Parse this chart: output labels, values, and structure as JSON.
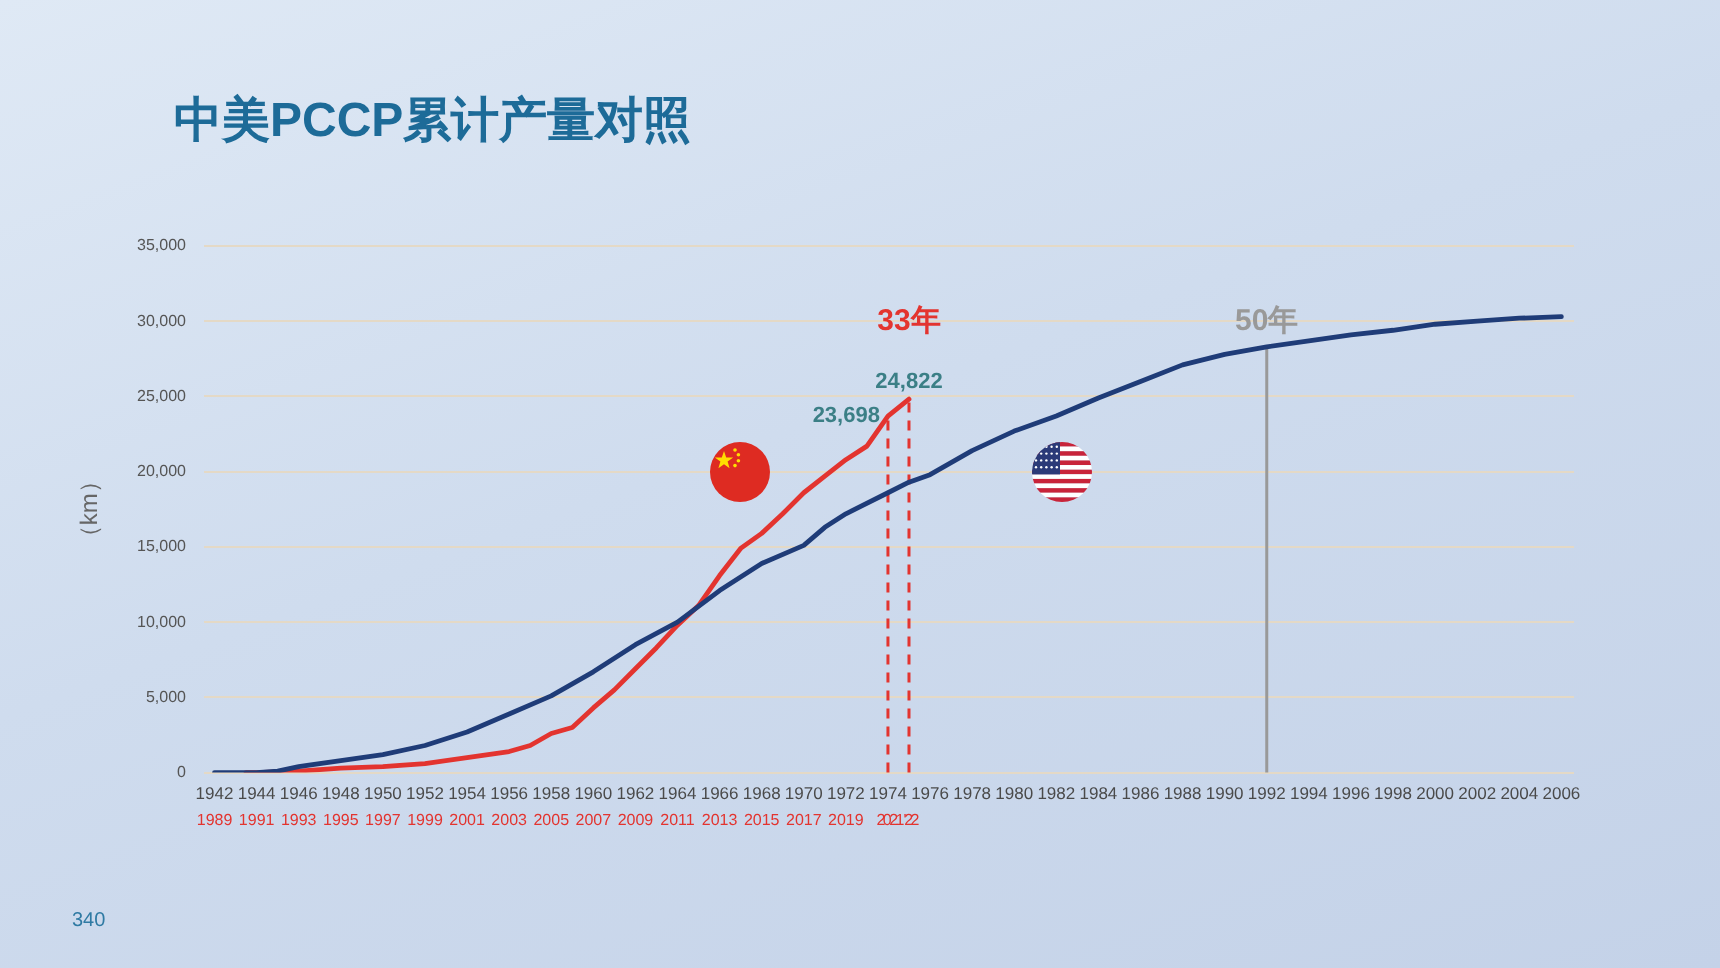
{
  "chart_data": {
    "type": "line",
    "title": "中美PCCP累计产量对照",
    "ylabel": "（km）",
    "xlim": [
      1941.5,
      2006.6
    ],
    "xticks": [
      1942,
      1944,
      1946,
      1948,
      1950,
      1952,
      1954,
      1956,
      1958,
      1960,
      1962,
      1964,
      1966,
      1968,
      1970,
      1972,
      1974,
      1976,
      1978,
      1980,
      1982,
      1984,
      1986,
      1988,
      1990,
      1992,
      1994,
      1996,
      1998,
      2000,
      2002,
      2004,
      2006
    ],
    "x2lim": [
      1988.5,
      2053.6
    ],
    "x2ticks": [
      1989,
      1991,
      1993,
      1995,
      1997,
      1999,
      2001,
      2003,
      2005,
      2007,
      2009,
      2011,
      2013,
      2015,
      2017,
      2019,
      2021,
      {
        "value": 2022,
        "label": "'22"
      }
    ],
    "ylim": [
      0,
      35000
    ],
    "yticks": [
      0,
      {
        "value": 5000,
        "label": "5,000"
      },
      {
        "value": 10000,
        "label": "10,000"
      },
      {
        "value": 15000,
        "label": "15,000"
      },
      {
        "value": 20000,
        "label": "20,000"
      },
      {
        "value": 25000,
        "label": "25,000"
      },
      {
        "value": 30000,
        "label": "30,000"
      },
      {
        "value": 35000,
        "label": "35,000"
      }
    ],
    "grid": "y",
    "legend": false,
    "marker": "none",
    "series": [
      {
        "color": "#1f3c78",
        "x": [
          1942,
          1944,
          1945,
          1946,
          1948,
          1950,
          1952,
          1954,
          1956,
          1958,
          1960,
          1962,
          1964,
          1966,
          1968,
          1970,
          1971,
          1972,
          1974,
          1975,
          1976,
          1978,
          1980,
          1982,
          1984,
          1986,
          1988,
          1990,
          1992,
          1994,
          1996,
          1998,
          2000,
          2002,
          2004,
          2006
        ],
        "values": [
          0,
          0,
          100,
          400,
          800,
          1200,
          1800,
          2700,
          3900,
          5100,
          6700,
          8500,
          10000,
          12100,
          13900,
          15100,
          16300,
          17200,
          18600,
          19300,
          19800,
          21400,
          22700,
          23700,
          24900,
          26000,
          27100,
          27800,
          28300,
          28700,
          29100,
          29400,
          29800,
          30000,
          30200,
          30300
        ]
      },
      {
        "color": "#e3342f",
        "axis": "x2",
        "x": [
          1990.5,
          1991,
          1993,
          1995,
          1997,
          1999,
          2001,
          2003,
          2004,
          2005,
          2006,
          2007,
          2008,
          2009,
          2010,
          2011,
          2012,
          2013,
          2014,
          2015,
          2016,
          2017,
          2018,
          2019,
          2020,
          2021,
          2022
        ],
        "values": [
          0,
          0,
          100,
          300,
          400,
          600,
          1000,
          1400,
          1800,
          2600,
          3000,
          4300,
          5500,
          6900,
          8300,
          9800,
          11100,
          13100,
          14900,
          15900,
          17200,
          18600,
          19700,
          20800,
          21700,
          23698,
          24822
        ],
        "value_labels": [
          null,
          null,
          null,
          null,
          null,
          null,
          null,
          null,
          null,
          null,
          null,
          null,
          null,
          null,
          null,
          null,
          null,
          null,
          null,
          null,
          null,
          null,
          null,
          null,
          null,
          "23,698",
          "24,822"
        ]
      }
    ],
    "ref_lines": [
      {
        "axis": "x2",
        "value": 2021,
        "color": "#e3342f",
        "line_style": "dashed"
      },
      {
        "axis": "x2",
        "value": 2022,
        "label": "33年",
        "color": "#e3342f",
        "line_style": "dashed"
      },
      {
        "axis": "x",
        "value": 1992,
        "label": "50年",
        "color": "#999999"
      }
    ],
    "annotations": [
      "340"
    ]
  }
}
